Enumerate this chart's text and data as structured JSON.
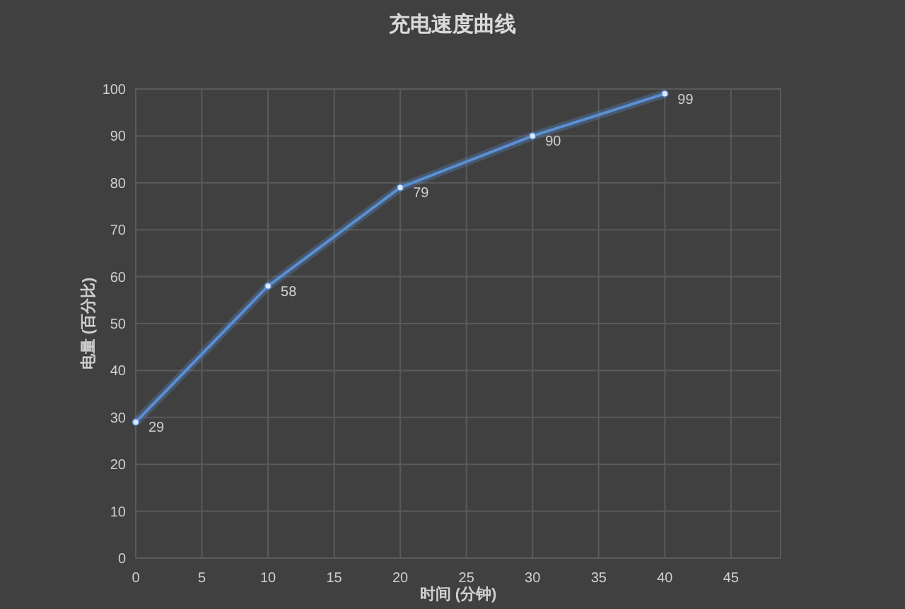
{
  "chart_data": {
    "type": "line",
    "title": "充电速度曲线",
    "xlabel": "时间 (分钟)",
    "ylabel": "电量 (百分比)",
    "x": [
      0,
      10,
      20,
      30,
      40
    ],
    "series": [
      {
        "color": "#5b8fd4",
        "values": [
          29,
          58,
          79,
          90,
          99
        ]
      }
    ],
    "xlim": [
      0,
      48.75
    ],
    "xticks": [
      0,
      5,
      10,
      15,
      20,
      25,
      30,
      35,
      40,
      45
    ],
    "ylim": [
      0,
      100
    ],
    "yticks": [
      0,
      10,
      20,
      30,
      40,
      50,
      60,
      70,
      80,
      90,
      100
    ],
    "grid": true,
    "marker": "circle",
    "line_style": "solid",
    "data_labels": true
  }
}
